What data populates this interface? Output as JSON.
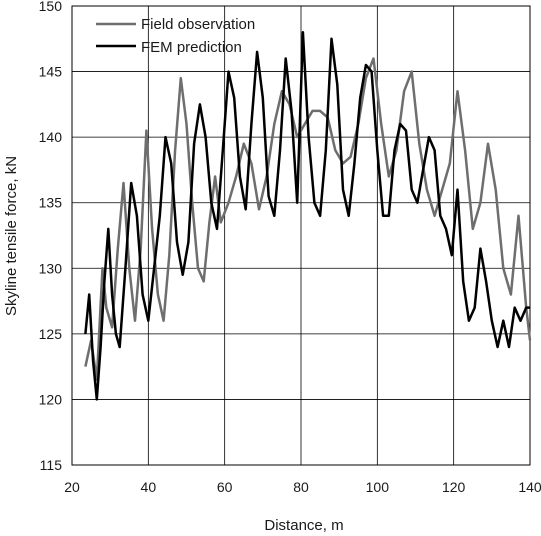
{
  "chart_data": {
    "type": "line",
    "title": "",
    "xlabel": "Distance, m",
    "ylabel": "Skyline tensile force, kN",
    "xlim": [
      20,
      140
    ],
    "ylim": [
      115,
      150
    ],
    "xticks": [
      20,
      40,
      60,
      80,
      100,
      120,
      140
    ],
    "yticks": [
      115,
      120,
      125,
      130,
      135,
      140,
      145,
      150
    ],
    "grid": true,
    "legend_position": "top-left",
    "series": [
      {
        "name": "Field observation",
        "color": "#6e6e6e",
        "x": [
          23.5,
          25,
          26.5,
          28,
          29,
          30.5,
          32,
          33.5,
          35,
          36.5,
          38,
          39.5,
          41,
          42.5,
          44,
          45.5,
          47,
          48.5,
          50,
          51.5,
          53,
          54.5,
          56,
          57.5,
          59,
          61,
          63,
          65,
          67,
          69,
          71,
          73,
          75,
          77,
          79,
          81,
          83,
          85,
          87,
          89,
          91,
          93,
          95,
          97,
          99,
          101,
          103,
          105,
          107,
          109,
          111,
          113,
          115,
          117,
          119,
          121,
          123,
          125,
          127,
          129,
          131,
          133,
          135,
          137,
          139,
          140
        ],
        "y": [
          122.5,
          124.5,
          121.5,
          130,
          127,
          125.5,
          131.5,
          136.5,
          130,
          126,
          131.5,
          140.5,
          133,
          128,
          126,
          131,
          139,
          144.5,
          141,
          135,
          130,
          129,
          133.5,
          137,
          133.5,
          135,
          137,
          139.5,
          138,
          134.5,
          137,
          141,
          143.5,
          142.5,
          140,
          141,
          142,
          142,
          141.5,
          139,
          138,
          138.5,
          141,
          144.5,
          146,
          141,
          137,
          139,
          143.5,
          145,
          139.5,
          136,
          134,
          136,
          138,
          143.5,
          139,
          133,
          135,
          139.5,
          136,
          130,
          128,
          134,
          127,
          124.5
        ],
        "values_note": ""
      },
      {
        "name": "FEM prediction",
        "color": "#000000",
        "x": [
          23.5,
          24.5,
          25.5,
          26.5,
          27.5,
          28.5,
          29.5,
          30.5,
          31.5,
          32.5,
          34,
          35.5,
          37,
          38.5,
          40,
          41.5,
          43,
          44.5,
          46,
          47.5,
          49,
          50.5,
          52,
          53.5,
          55,
          56.5,
          58,
          59.5,
          61,
          62.5,
          64,
          65.5,
          67,
          68.5,
          70,
          71.5,
          73,
          74.5,
          76,
          77.5,
          79,
          80.5,
          82,
          83.5,
          85,
          86.5,
          88,
          89.5,
          91,
          92.5,
          94,
          95.5,
          97,
          98.5,
          100,
          101.5,
          103,
          104.5,
          106,
          107.5,
          109,
          110.5,
          112,
          113.5,
          115,
          116.5,
          118,
          119.5,
          121,
          122.5,
          124,
          125.5,
          127,
          128.5,
          130,
          131.5,
          133,
          134.5,
          136,
          137.5,
          139,
          140
        ],
        "y": [
          125,
          128,
          123,
          120,
          124,
          129,
          133,
          128,
          125,
          124,
          130,
          136.5,
          134,
          128,
          126,
          130,
          134,
          140,
          138,
          132,
          129.5,
          132,
          139.5,
          142.5,
          140,
          135,
          133,
          139,
          145,
          143,
          137,
          134.5,
          141,
          146.5,
          143,
          135.5,
          134,
          139,
          146,
          142,
          135,
          148,
          140,
          135,
          134,
          139,
          147.5,
          144,
          136,
          134,
          138,
          143,
          145.5,
          145,
          139,
          134,
          134,
          139,
          141,
          140.5,
          136,
          135,
          137.5,
          140,
          139,
          134,
          133,
          131,
          136,
          129,
          126,
          127,
          131.5,
          129,
          126,
          124,
          126,
          124,
          127,
          126,
          127,
          127
        ]
      }
    ]
  }
}
